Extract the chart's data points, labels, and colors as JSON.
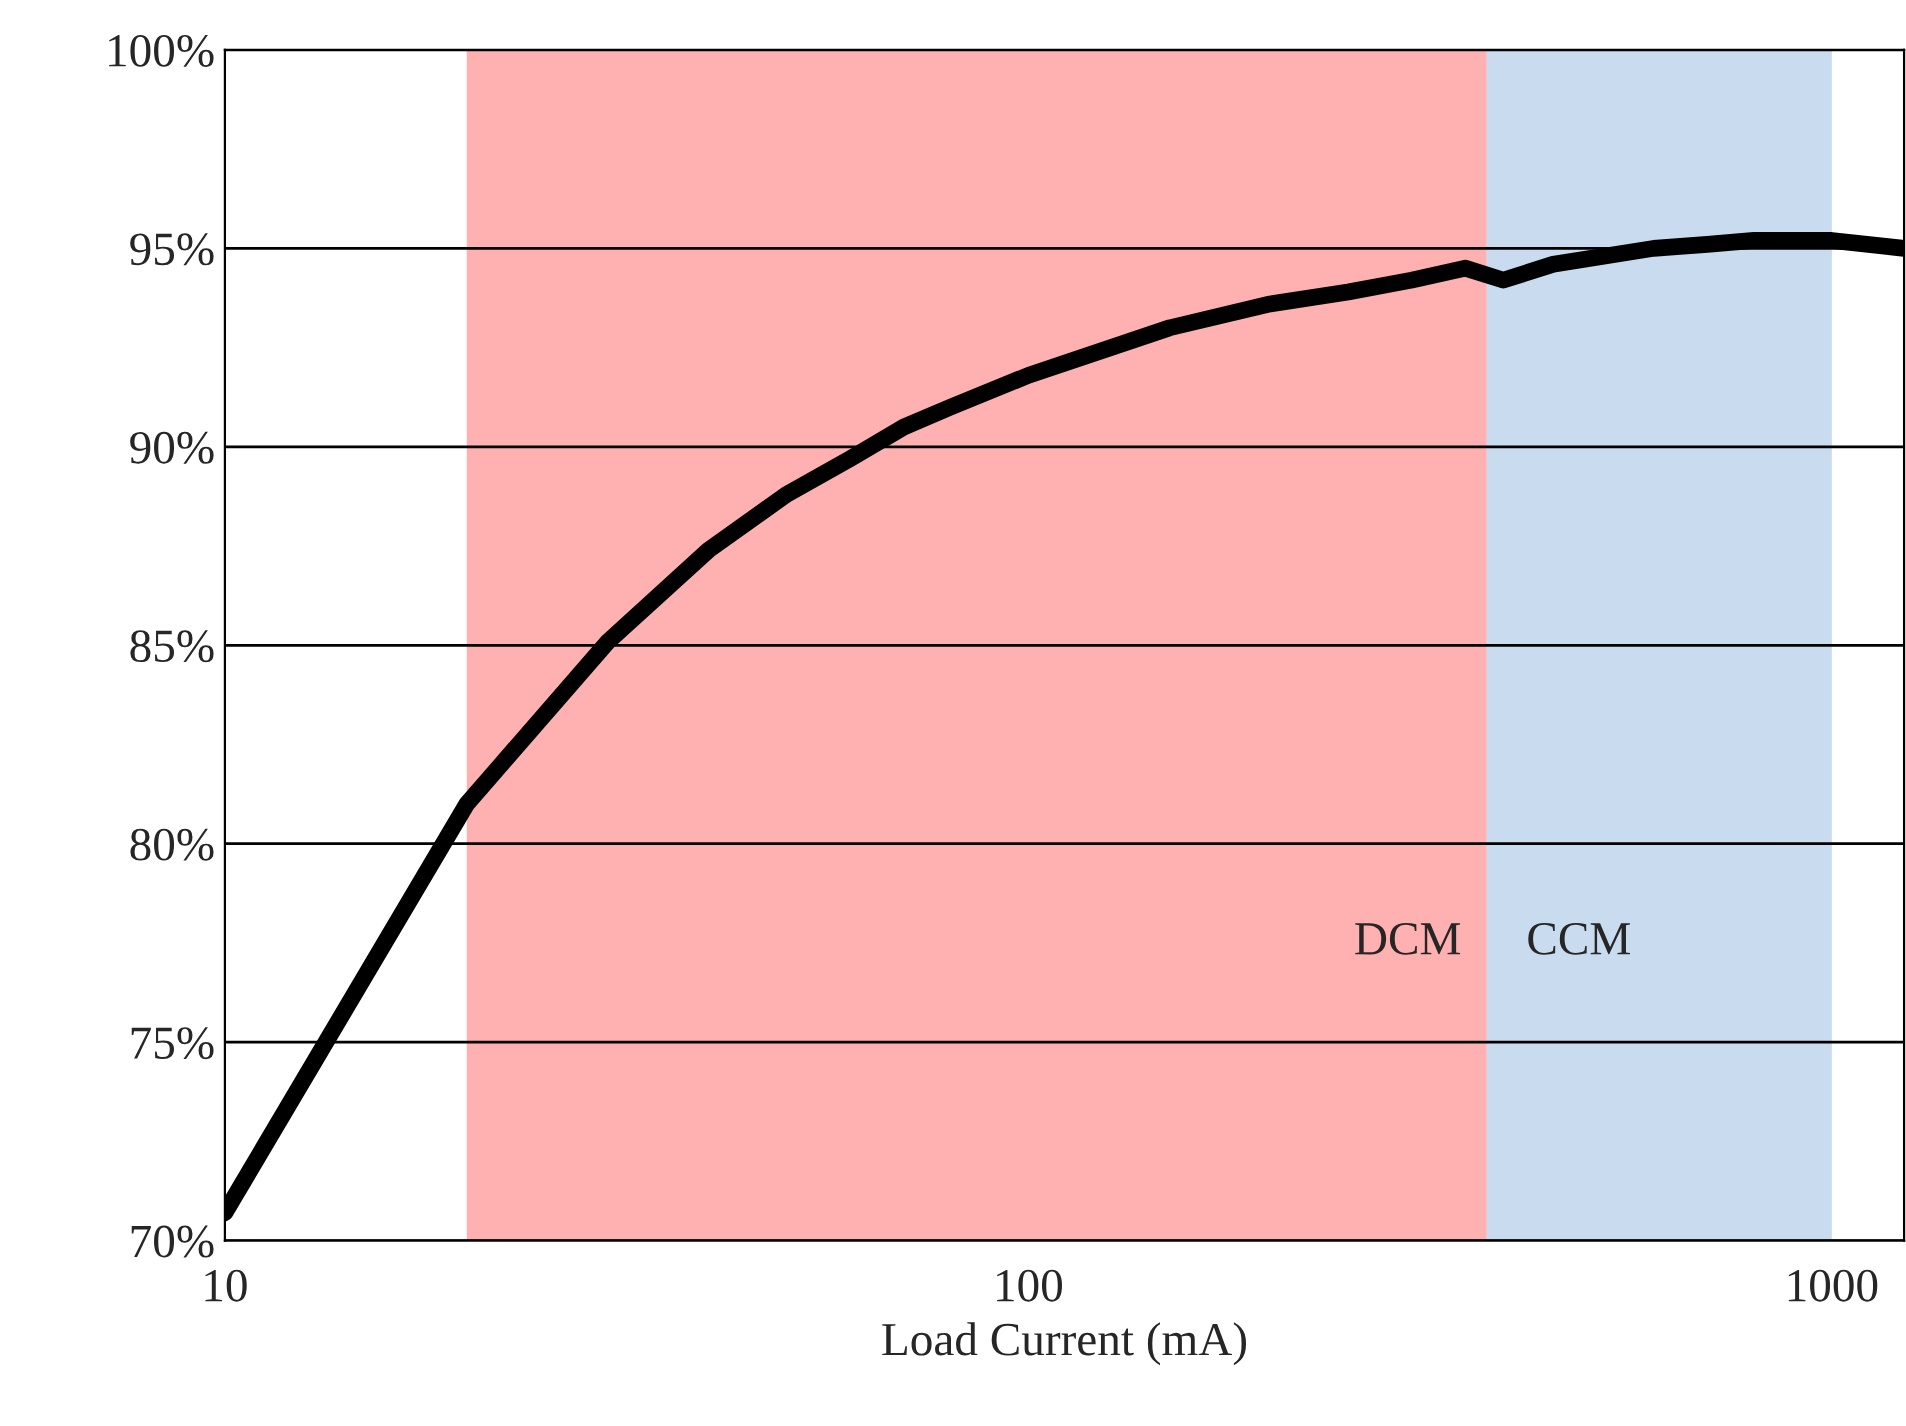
{
  "chart_data": {
    "type": "line",
    "xlabel": "Load Current (mA)",
    "log": "x",
    "x": [
      10,
      20,
      30,
      40,
      50,
      60,
      70,
      80,
      100,
      150,
      200,
      250,
      300,
      350,
      390,
      450,
      600,
      700,
      800,
      900,
      1000,
      1230
    ],
    "series": [
      {
        "color": "#000000",
        "values": [
          70.7,
          81.0,
          85.1,
          87.4,
          88.8,
          89.7,
          90.5,
          91.0,
          91.8,
          93.0,
          93.6,
          93.9,
          94.2,
          94.5,
          94.2,
          94.6,
          95.0,
          95.1,
          95.2,
          95.2,
          95.2,
          95.0
        ]
      }
    ],
    "xlim": [
      10,
      1230
    ],
    "xticks": [
      10,
      100,
      1000
    ],
    "ylim": [
      70,
      100
    ],
    "yticks": [
      {
        "value": 70,
        "label": "70%"
      },
      {
        "value": 75,
        "label": "75%"
      },
      {
        "value": 80,
        "label": "80%"
      },
      {
        "value": 85,
        "label": "85%"
      },
      {
        "value": 90,
        "label": "90%"
      },
      {
        "value": 95,
        "label": "95%"
      },
      {
        "value": 100,
        "label": "100%"
      }
    ],
    "grid": "y",
    "bands": [
      {
        "axis": "x",
        "from": 20,
        "to": 372,
        "label": "DCM",
        "color": "#ffb0b0"
      },
      {
        "axis": "x",
        "from": 372,
        "to": 1000,
        "label": "CCM",
        "color": "#c9dcef"
      }
    ]
  }
}
